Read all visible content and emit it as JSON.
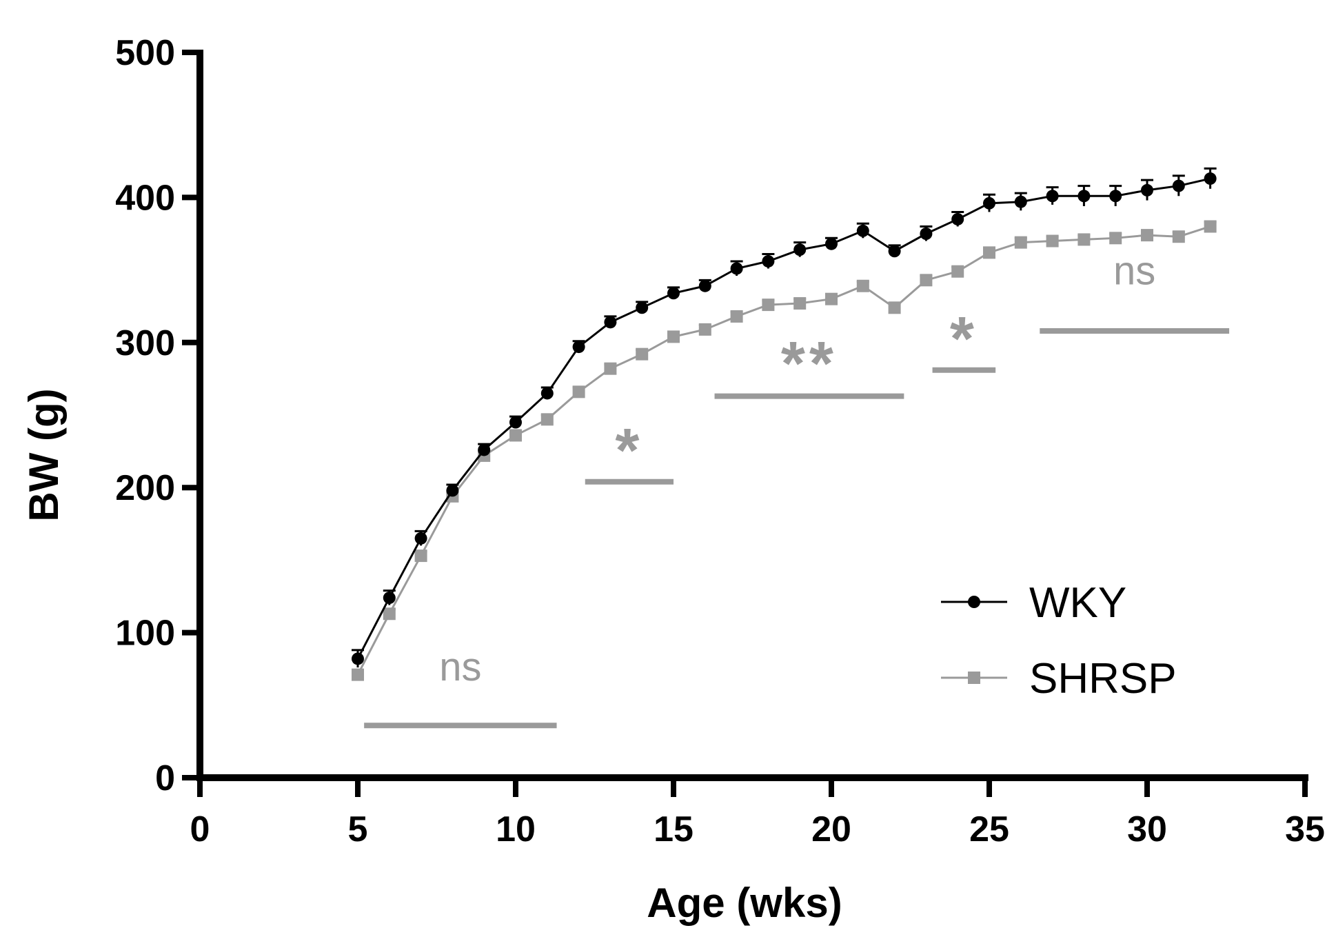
{
  "chart_data": {
    "type": "line",
    "xlabel": "Age (wks)",
    "ylabel": "BW (g)",
    "xlim": [
      0,
      35
    ],
    "ylim": [
      0,
      500
    ],
    "xticks": [
      "0",
      "5",
      "10",
      "15",
      "20",
      "25",
      "30",
      "35"
    ],
    "yticks": [
      "0",
      "100",
      "200",
      "300",
      "400",
      "500"
    ],
    "grid": false,
    "legend_position": "bottom-right",
    "x": [
      5,
      6,
      7,
      8,
      9,
      10,
      11,
      12,
      13,
      14,
      15,
      16,
      17,
      18,
      19,
      20,
      21,
      22,
      23,
      24,
      25,
      26,
      27,
      28,
      29,
      30,
      31,
      32
    ],
    "series": [
      {
        "name": "WKY",
        "color": "#000000",
        "marker": "circle",
        "values": [
          82,
          124,
          165,
          198,
          226,
          245,
          265,
          297,
          314,
          324,
          334,
          339,
          351,
          356,
          364,
          368,
          377,
          363,
          375,
          385,
          396,
          397,
          401,
          401,
          401,
          405,
          408,
          413
        ],
        "error": [
          6,
          5,
          5,
          4,
          4,
          4,
          4,
          4,
          4,
          4,
          4,
          4,
          5,
          5,
          5,
          4,
          5,
          4,
          5,
          5,
          6,
          6,
          6,
          7,
          7,
          7,
          7,
          7
        ]
      },
      {
        "name": "SHRSP",
        "color": "#9a9a9a",
        "marker": "square",
        "values": [
          71,
          113,
          153,
          194,
          222,
          236,
          247,
          266,
          282,
          292,
          304,
          309,
          318,
          326,
          327,
          330,
          339,
          324,
          343,
          349,
          362,
          369,
          370,
          371,
          372,
          374,
          373,
          380
        ],
        "error": [
          3,
          3,
          3,
          3,
          3,
          3,
          3,
          3,
          3,
          3,
          3,
          3,
          3,
          3,
          3,
          3,
          3,
          3,
          3,
          3,
          3,
          3,
          3,
          3,
          3,
          3,
          3,
          3
        ]
      }
    ],
    "annotations": [
      {
        "label": "ns",
        "x_start": 5.2,
        "x_end": 11.3,
        "y_bar": 36,
        "y_label": 67
      },
      {
        "label": "*",
        "x_start": 12.2,
        "x_end": 15.0,
        "y_bar": 204,
        "y_label": 230
      },
      {
        "label": "**",
        "x_start": 16.3,
        "x_end": 22.3,
        "y_bar": 263,
        "y_label": 290
      },
      {
        "label": "*",
        "x_start": 23.2,
        "x_end": 25.2,
        "y_bar": 281,
        "y_label": 307
      },
      {
        "label": "ns",
        "x_start": 26.6,
        "x_end": 32.6,
        "y_bar": 308,
        "y_label": 340
      }
    ]
  }
}
